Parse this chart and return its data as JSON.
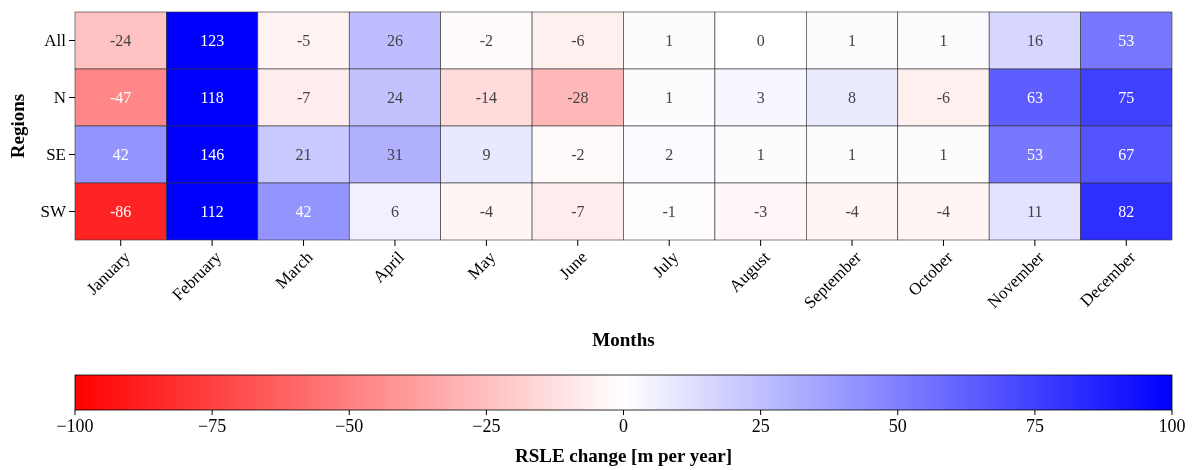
{
  "chart_data": {
    "type": "heatmap",
    "xlabel": "Months",
    "ylabel": "Regions",
    "clabel": "RSLE change [m per year]",
    "categories": [
      "January",
      "February",
      "March",
      "April",
      "May",
      "June",
      "July",
      "August",
      "September",
      "October",
      "November",
      "December"
    ],
    "y_categories": [
      "All",
      "N",
      "SE",
      "SW"
    ],
    "cells": [
      [
        -24,
        123,
        -5,
        26,
        -2,
        -6,
        1,
        0,
        1,
        1,
        16,
        53
      ],
      [
        -47,
        118,
        -7,
        24,
        -14,
        -28,
        1,
        3,
        8,
        -6,
        63,
        75
      ],
      [
        42,
        146,
        21,
        31,
        9,
        -2,
        2,
        1,
        1,
        1,
        53,
        67
      ],
      [
        -86,
        112,
        42,
        6,
        -4,
        -7,
        -1,
        -3,
        -4,
        -4,
        11,
        82
      ]
    ],
    "clim": [
      -100,
      100
    ],
    "data_labels": true,
    "cticks": [
      {
        "value": -100,
        "label": "−100"
      },
      {
        "value": -75,
        "label": "−75"
      },
      {
        "value": -50,
        "label": "−50"
      },
      {
        "value": -25,
        "label": "−25"
      },
      0,
      25,
      50,
      75,
      100
    ]
  }
}
